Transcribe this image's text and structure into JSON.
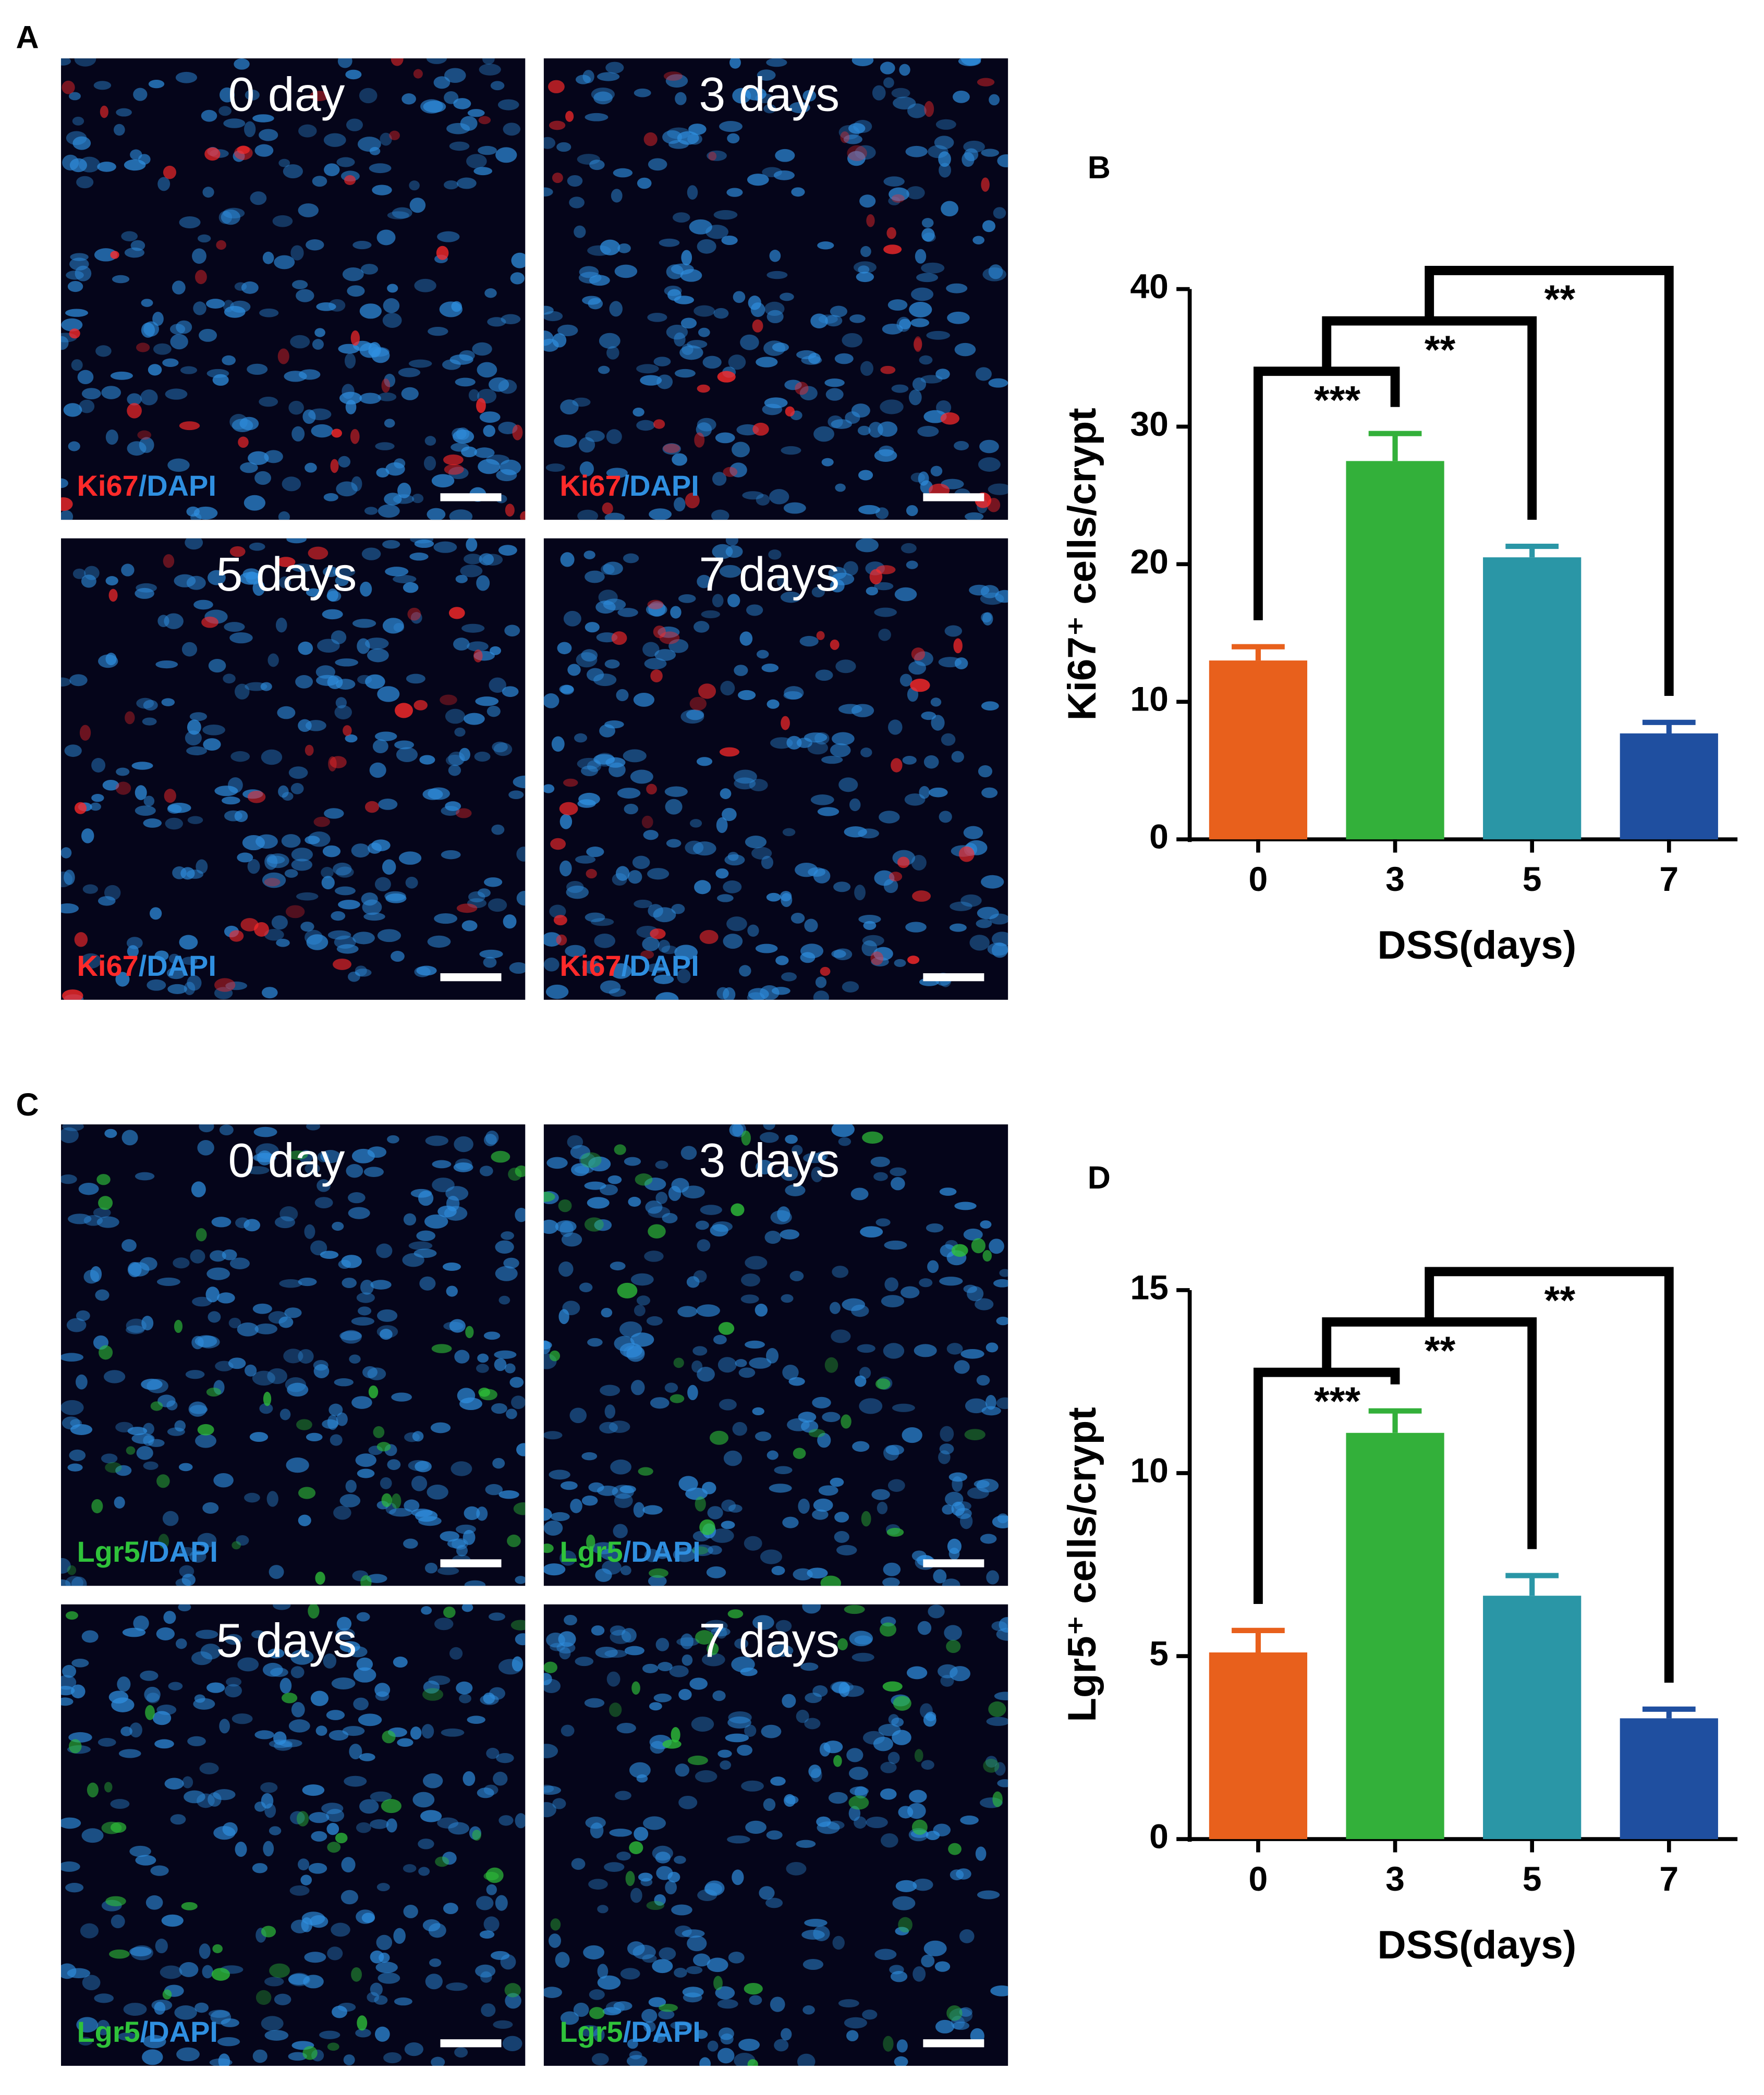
{
  "figure": {
    "panel_labels": [
      "A",
      "B",
      "C",
      "D"
    ]
  },
  "micrographs": [
    {
      "marker": "Ki67",
      "separator": "/",
      "counterstain": "DAPI",
      "marker_color": "#ff2a2a",
      "counterstain_color": "#2f8fe0",
      "timepoints": [
        "0 day",
        "3 days",
        "5 days",
        "7 days"
      ]
    },
    {
      "marker": "Lgr5",
      "separator": "/",
      "counterstain": "DAPI",
      "marker_color": "#2fc23a",
      "counterstain_color": "#2f8fe0",
      "timepoints": [
        "0 day",
        "3 days",
        "5 days",
        "7 days"
      ]
    }
  ],
  "chart_data": [
    {
      "type": "bar",
      "ylabel": "Ki67⁺ cells/crypt",
      "xlabel": "DSS(days)",
      "categories": [
        "0",
        "3",
        "5",
        "7"
      ],
      "values": [
        13,
        27.5,
        20.5,
        7.7
      ],
      "errors": [
        1,
        2,
        0.8,
        0.8
      ],
      "colors": [
        "#e8601c",
        "#33b03a",
        "#2a96a6",
        "#1f4fa0"
      ],
      "ylim": [
        0,
        40
      ],
      "yticks": [
        0,
        10,
        20,
        30,
        40
      ],
      "annotations": [
        {
          "from": 0,
          "to": 1,
          "label": "***"
        },
        {
          "from": 1,
          "to": 2,
          "label": "**"
        },
        {
          "from": 2,
          "to": 3,
          "label": "**"
        }
      ]
    },
    {
      "type": "bar",
      "ylabel": "Lgr5⁺ cells/crypt",
      "xlabel": "DSS(days)",
      "categories": [
        "0",
        "3",
        "5",
        "7"
      ],
      "values": [
        5.1,
        11.1,
        6.65,
        3.3
      ],
      "errors": [
        0.6,
        0.6,
        0.55,
        0.25
      ],
      "colors": [
        "#e8601c",
        "#33b03a",
        "#2a96a6",
        "#1f4fa0"
      ],
      "ylim": [
        0,
        15
      ],
      "yticks": [
        0,
        5,
        10,
        15
      ],
      "annotations": [
        {
          "from": 0,
          "to": 1,
          "label": "***"
        },
        {
          "from": 1,
          "to": 2,
          "label": "**"
        },
        {
          "from": 2,
          "to": 3,
          "label": "**"
        }
      ]
    }
  ]
}
